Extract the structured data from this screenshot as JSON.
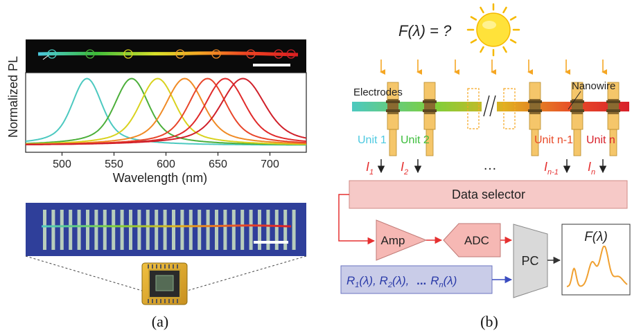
{
  "panel_a": {
    "caption": "(a)",
    "chart_data": {
      "type": "line",
      "ylabel": "Normalized PL",
      "xlabel": "Wavelength (nm)",
      "xlim": [
        465,
        735
      ],
      "ylim": [
        0,
        1.0
      ],
      "x_ticks": [
        "500",
        "550",
        "600",
        "650",
        "700"
      ],
      "x_tick_values": [
        500,
        550,
        600,
        650,
        700
      ],
      "grid": false,
      "series": [
        {
          "color": "#4cc9c0",
          "peak_nm": 524,
          "fwhm_nm": 30
        },
        {
          "color": "#4caf3a",
          "peak_nm": 567,
          "fwhm_nm": 34
        },
        {
          "color": "#d9d21e",
          "peak_nm": 592,
          "fwhm_nm": 36
        },
        {
          "color": "#f08a25",
          "peak_nm": 618,
          "fwhm_nm": 38
        },
        {
          "color": "#e8452a",
          "peak_nm": 640,
          "fwhm_nm": 38
        },
        {
          "color": "#e02a2a",
          "peak_nm": 657,
          "fwhm_nm": 40
        },
        {
          "color": "#d0202a",
          "peak_nm": 674,
          "fwhm_nm": 44
        }
      ]
    },
    "top_image": {
      "circle_colors": [
        "#4cc9c0",
        "#4caf3a",
        "#d9d21e",
        "#f0a030",
        "#f08a25",
        "#e8452a",
        "#e02a2a",
        "#d0202a"
      ]
    },
    "electrode_image": {
      "background": "#2f3f9a",
      "electrode_color": "#c8ddc0"
    }
  },
  "panel_b": {
    "caption": "(b)",
    "formula": "F(λ) = ?",
    "labels": {
      "electrodes": "Electrodes",
      "nanowire": "Nanowire",
      "unit1": "Unit 1",
      "unit2": "Unit 2",
      "unit_n1": "Unit n-1",
      "unit_n": "Unit n",
      "dots": "…",
      "currents": [
        {
          "name": "I",
          "sub": "1"
        },
        {
          "name": "I",
          "sub": "2"
        },
        {
          "name": "I",
          "sub": "n-1"
        },
        {
          "name": "I",
          "sub": "n"
        }
      ]
    },
    "blocks": {
      "data_selector": "Data selector",
      "amp": "Amp",
      "adc": "ADC",
      "pc": "PC",
      "output_title": "F(λ)"
    },
    "responses": {
      "r1": "R",
      "r1_sub": "1",
      "r1_arg": "(λ), ",
      "r2": "R",
      "r2_sub": "2",
      "r2_arg": "(λ), ",
      "dots": "...",
      "rn": "R",
      "rn_sub": "n",
      "rn_arg": "(λ)"
    },
    "colors": {
      "selector_fill": "#f6c9c7",
      "amp_fill": "#f6b8b4",
      "response_fill": "#c9cce8",
      "pc_fill": "#d9d9d9",
      "arrow_orange": "#f5a623",
      "signal_red": "#e53030",
      "response_blue": "#3a4cc0",
      "electrode_fill": "#f5c66a",
      "output_curve": "#f0a030"
    }
  }
}
